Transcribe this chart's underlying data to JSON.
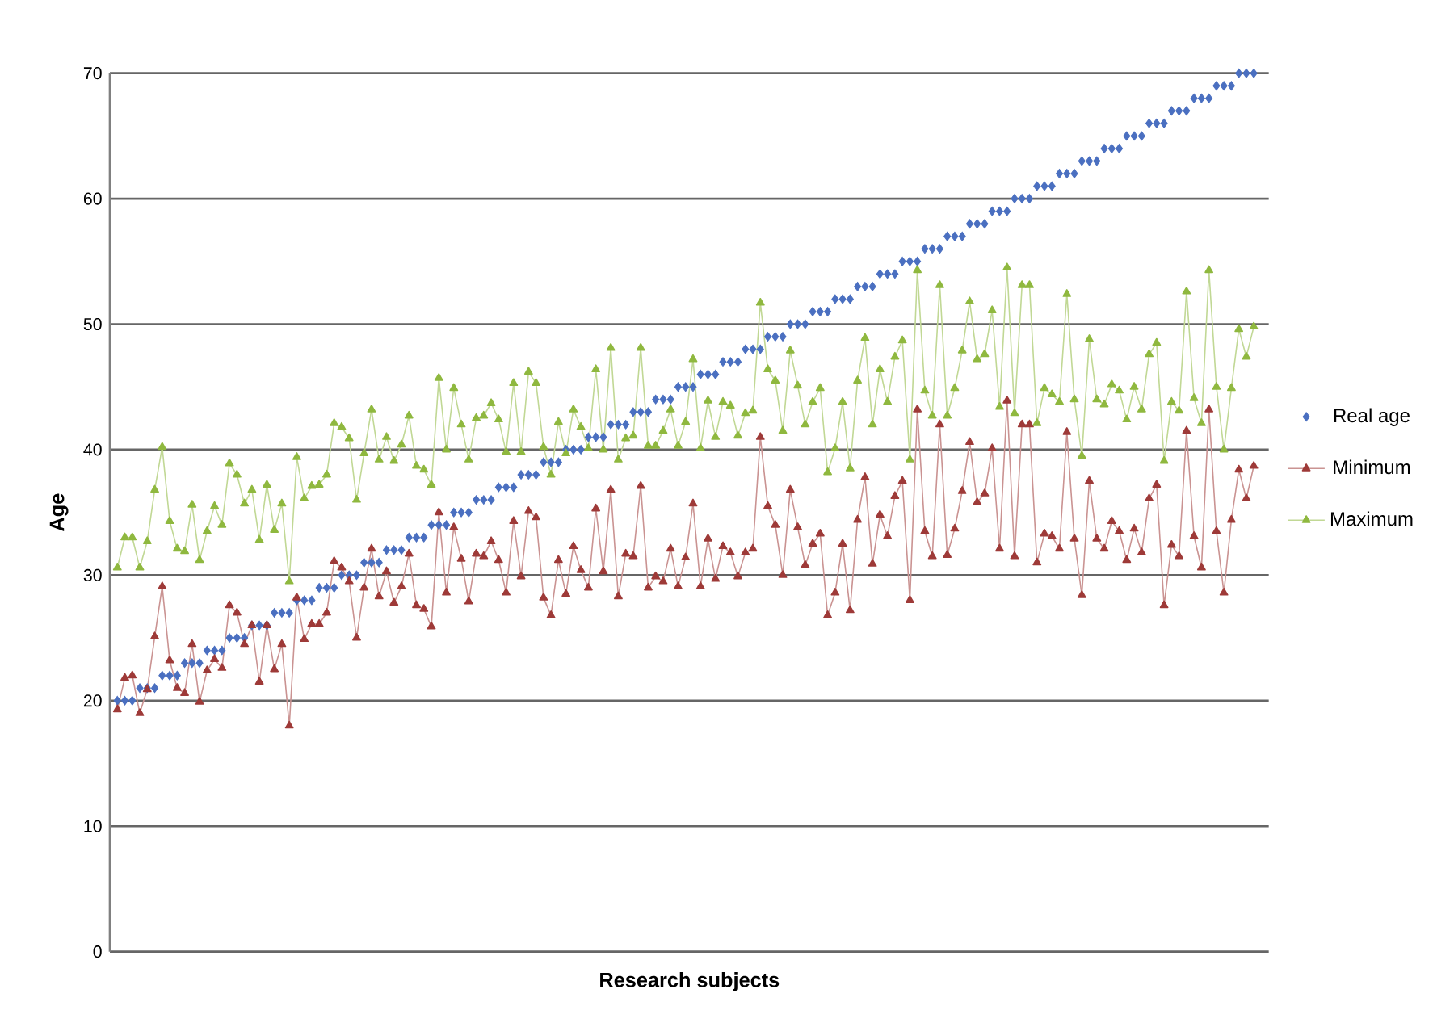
{
  "chart_data": {
    "type": "line",
    "xlabel": "Research subjects",
    "ylabel": "Age",
    "categories": [
      null,
      null,
      null,
      null,
      null,
      null,
      null,
      null,
      null,
      null,
      null,
      null,
      null,
      null,
      null,
      null,
      null,
      null,
      null,
      null,
      null,
      null,
      null,
      null,
      null,
      null,
      null,
      null,
      null,
      null,
      null,
      null,
      null,
      null,
      null,
      null,
      null,
      null,
      null,
      null,
      null,
      null,
      null,
      null,
      null,
      null,
      null,
      null,
      null,
      null,
      null,
      null,
      null,
      null,
      null,
      null,
      null,
      null,
      null,
      null,
      null,
      null,
      null,
      null,
      null,
      null,
      null,
      null,
      null,
      null,
      null,
      null,
      null,
      null,
      null,
      null,
      null,
      null,
      null,
      null,
      null,
      null,
      null,
      null,
      null,
      null,
      null,
      null,
      null,
      null,
      null,
      null,
      null,
      null,
      null,
      null,
      null,
      null,
      null,
      null,
      null,
      null,
      null,
      null,
      null,
      null,
      null,
      null,
      null,
      null,
      null,
      null,
      null,
      null,
      null,
      null,
      null,
      null,
      null,
      null,
      null,
      null,
      null,
      null,
      null,
      null,
      null,
      null,
      null,
      null,
      null,
      null,
      null,
      null,
      null,
      null,
      null,
      null,
      null,
      null,
      null,
      null,
      null,
      null,
      null,
      null,
      null,
      null,
      null,
      null,
      null,
      null,
      null
    ],
    "series": [
      {
        "name": "Real age",
        "type": "scatter",
        "marker": "diamond",
        "color": "#4a6fc0",
        "values": [
          20,
          20,
          20,
          21,
          21,
          21,
          22,
          22,
          22,
          23,
          23,
          23,
          24,
          24,
          24,
          25,
          25,
          25,
          26,
          26,
          26,
          27,
          27,
          27,
          28,
          28,
          28,
          29,
          29,
          29,
          30,
          30,
          30,
          31,
          31,
          31,
          32,
          32,
          32,
          33,
          33,
          33,
          34,
          34,
          34,
          35,
          35,
          35,
          36,
          36,
          36,
          37,
          37,
          37,
          38,
          38,
          38,
          39,
          39,
          39,
          40,
          40,
          40,
          41,
          41,
          41,
          42,
          42,
          42,
          43,
          43,
          43,
          44,
          44,
          44,
          45,
          45,
          45,
          46,
          46,
          46,
          47,
          47,
          47,
          48,
          48,
          48,
          49,
          49,
          49,
          50,
          50,
          50,
          51,
          51,
          51,
          52,
          52,
          52,
          53,
          53,
          53,
          54,
          54,
          54,
          55,
          55,
          55,
          56,
          56,
          56,
          57,
          57,
          57,
          58,
          58,
          58,
          59,
          59,
          59,
          60,
          60,
          60,
          61,
          61,
          61,
          62,
          62,
          62,
          63,
          63,
          63,
          64,
          64,
          64,
          65,
          65,
          65,
          66,
          66,
          66,
          67,
          67,
          67,
          68,
          68,
          68,
          69,
          69,
          69,
          70,
          70,
          70
        ]
      },
      {
        "name": "Minimum",
        "marker": "triangle",
        "color": "#9e3a38",
        "values": [
          19.3,
          21.8,
          22,
          19,
          20.9,
          25.1,
          29.1,
          23.2,
          21,
          20.6,
          24.5,
          19.9,
          22.4,
          23.3,
          22.6,
          27.6,
          27,
          24.5,
          26,
          21.5,
          26,
          22.5,
          24.5,
          18,
          28.2,
          24.9,
          26.1,
          26.1,
          27,
          31.1,
          30.6,
          29.5,
          25,
          29,
          32.1,
          28.3,
          30.3,
          27.8,
          29.1,
          31.7,
          27.6,
          27.3,
          25.9,
          35,
          28.6,
          33.8,
          31.3,
          27.9,
          31.7,
          31.5,
          32.7,
          31.2,
          28.6,
          34.3,
          29.9,
          35.1,
          34.6,
          28.2,
          26.8,
          31.2,
          28.5,
          32.3,
          30.4,
          29,
          35.3,
          30.3,
          36.8,
          28.3,
          31.7,
          31.5,
          37.1,
          29,
          29.9,
          29.5,
          32.1,
          29.1,
          31.4,
          35.7,
          29.1,
          32.9,
          29.7,
          32.3,
          31.8,
          29.9,
          31.8,
          32.1,
          41,
          35.5,
          34,
          30,
          36.8,
          33.8,
          30.8,
          32.5,
          33.3,
          26.8,
          28.6,
          32.5,
          27.2,
          34.4,
          37.8,
          30.9,
          34.8,
          33.1,
          36.3,
          37.5,
          28,
          43.2,
          33.5,
          31.5,
          42,
          31.6,
          33.7,
          36.7,
          40.6,
          35.8,
          36.5,
          40.1,
          32.1,
          43.9,
          31.5,
          42,
          42,
          31,
          33.3,
          33.1,
          32.1,
          41.4,
          32.9,
          28.4,
          37.5,
          32.9,
          32.1,
          34.3,
          33.5,
          31.2,
          33.7,
          31.8,
          36.1,
          37.2,
          27.6,
          32.4,
          31.5,
          41.5,
          33.1,
          30.6,
          43.2,
          33.5,
          28.6,
          34.4,
          38.4,
          36.1,
          38.7
        ]
      },
      {
        "name": "Maximum",
        "marker": "triangle",
        "color": "#8fb83f",
        "values": [
          30.6,
          33,
          33,
          30.6,
          32.7,
          36.8,
          40.2,
          34.3,
          32.1,
          31.9,
          35.6,
          31.2,
          33.5,
          35.5,
          34,
          38.9,
          38,
          35.7,
          36.8,
          32.8,
          37.2,
          33.6,
          35.7,
          29.5,
          39.4,
          36.1,
          37.1,
          37.2,
          38,
          42.1,
          41.8,
          40.9,
          36,
          39.7,
          43.2,
          39.2,
          41,
          39.1,
          40.4,
          42.7,
          38.7,
          38.4,
          37.2,
          45.7,
          40,
          44.9,
          42,
          39.2,
          42.5,
          42.7,
          43.7,
          42.4,
          39.8,
          45.3,
          39.8,
          46.2,
          45.3,
          40.2,
          38,
          42.2,
          39.7,
          43.2,
          41.8,
          40.1,
          46.4,
          40,
          48.1,
          39.2,
          40.9,
          41.1,
          48.1,
          40.3,
          40.3,
          41.5,
          43.2,
          40.3,
          42.2,
          47.2,
          40.1,
          43.9,
          41,
          43.8,
          43.5,
          41.1,
          42.9,
          43.1,
          51.7,
          46.4,
          45.5,
          41.5,
          47.9,
          45.1,
          42,
          43.8,
          44.9,
          38.2,
          40.1,
          43.8,
          38.5,
          45.5,
          48.9,
          42,
          46.4,
          43.8,
          47.4,
          48.7,
          39.2,
          54.3,
          44.7,
          42.7,
          53.1,
          42.7,
          44.9,
          47.9,
          51.8,
          47.2,
          47.6,
          51.1,
          43.4,
          54.5,
          42.9,
          53.1,
          53.1,
          42.1,
          44.9,
          44.4,
          43.8,
          52.4,
          44,
          39.5,
          48.8,
          44,
          43.6,
          45.2,
          44.7,
          42.4,
          45,
          43.2,
          47.6,
          48.5,
          39.1,
          43.8,
          43.1,
          52.6,
          44.1,
          42.1,
          54.3,
          45,
          40,
          44.9,
          49.6,
          47.4,
          49.8
        ]
      }
    ],
    "ylim": [
      0,
      70
    ],
    "yticks": [
      0,
      10,
      20,
      30,
      40,
      50,
      60,
      70
    ],
    "grid": "y",
    "legend": "right",
    "tick_labels": "y"
  }
}
